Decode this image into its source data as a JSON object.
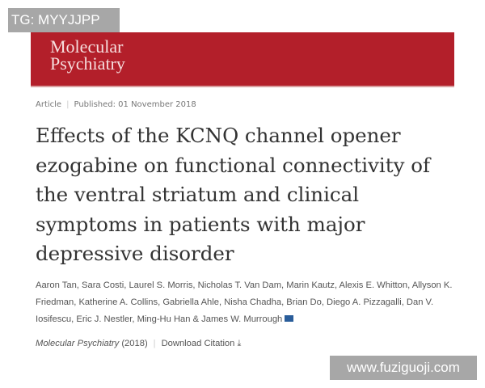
{
  "watermarks": {
    "top_left": "TG: MYYJJPP",
    "bottom_right": "www.fuziguoji.com"
  },
  "header": {
    "logo_line1": "Molecular",
    "logo_line2": "Psychiatry",
    "brand_color": "#b31f2a"
  },
  "article": {
    "type": "Article",
    "published": "Published: 01 November 2018",
    "title": "Effects of the KCNQ channel opener ezogabine on functional connectivity of the ventral striatum and clinical symptoms in patients with major depressive disorder",
    "authors": "Aaron Tan, Sara Costi, Laurel S. Morris, Nicholas T. Van Dam, Marin Kautz, Alexis E. Whitton, Allyson K. Friedman, Katherine A. Collins, Gabriella Ahle, Nisha Chadha, Brian Do, Diego A. Pizzagalli, Dan V. Iosifescu, Eric J. Nestler, Ming-Hu Han & James W. Murrough",
    "journal": "Molecular Psychiatry",
    "year": "(2018)",
    "download_citation": "Download Citation"
  }
}
